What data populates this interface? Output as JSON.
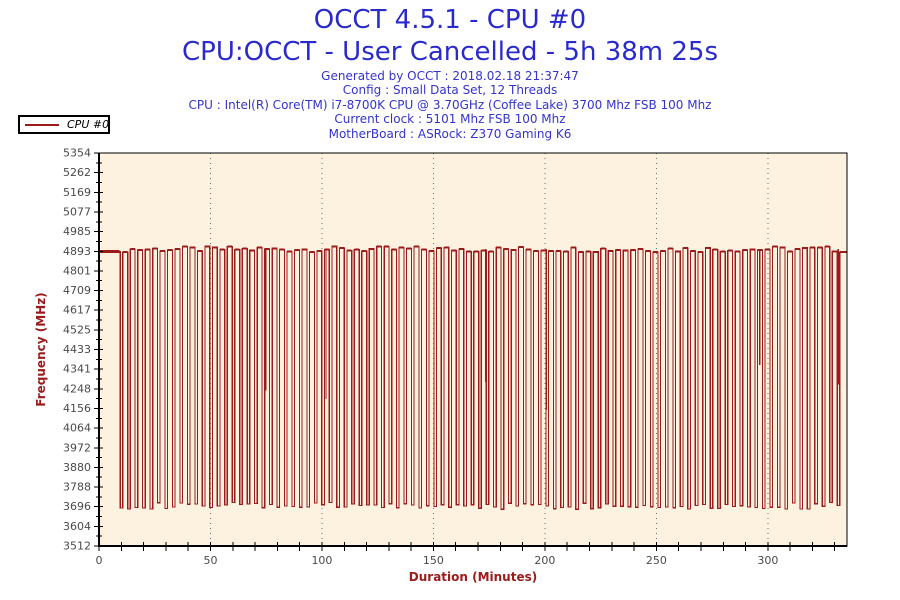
{
  "header": {
    "title": "OCCT 4.5.1 - CPU #0",
    "subtitle": "CPU:OCCT - User Cancelled - 5h 38m 25s"
  },
  "info_lines": [
    "Generated by OCCT : 2018.02.18 21:37:47",
    "Config : Small Data Set, 12 Threads",
    "CPU : Intel(R) Core(TM) i7-8700K CPU @ 3.70GHz (Coffee Lake) 3700 Mhz FSB 100 Mhz",
    "Current clock : 5101 Mhz FSB 100 Mhz",
    "MotherBoard : ASRock: Z370 Gaming K6"
  ],
  "legend": {
    "series_label": "CPU #0"
  },
  "colors": {
    "title_blue": "#2a2acc",
    "info_blue": "#3434cc",
    "series_red": "#9b1b1b",
    "axis_label_red": "#9b1b1b",
    "plot_bg": "#fcf2df",
    "axis_black": "#000000",
    "tick_label_gray": "#4a4a4a",
    "grid_gray": "#6e6e6e"
  },
  "chart_data": {
    "type": "line",
    "title": "OCCT 4.5.1 - CPU #0",
    "xlabel": "Duration (Minutes)",
    "ylabel": "Frequency (MHz)",
    "xlim": [
      0,
      335.5
    ],
    "ylim": [
      3512,
      5354
    ],
    "x_major_step": 50,
    "x_minor_step": 10,
    "x_max_tick": 330,
    "x_major_tick_labels": [
      "0",
      "50",
      "100",
      "150",
      "200",
      "250",
      "300"
    ],
    "y_tick_labels": [
      "3512",
      "3604",
      "3696",
      "3788",
      "3880",
      "3972",
      "4064",
      "4156",
      "4248",
      "4341",
      "4433",
      "4525",
      "4617",
      "4709",
      "4801",
      "4893",
      "4985",
      "5077",
      "5169",
      "5262",
      "5354"
    ],
    "grid": "vertical dotted lines at 50-minute majors",
    "legend_position": "outside top-left",
    "series": [
      {
        "name": "CPU #0",
        "pattern": "square-wave",
        "initial_flat": {
          "from_min": 0,
          "to_min": 9.2,
          "value_mhz": 4893
        },
        "oscillation": {
          "from_min": 9.5,
          "to_min": 335.3,
          "period_min": 3.35,
          "high_mhz": 4903,
          "low_mhz": 3700,
          "high_jitter_mhz": 14,
          "low_jitter_mhz": 16
        },
        "partial_dips": [
          {
            "min": 74.8,
            "to_mhz": 4240
          },
          {
            "min": 101.8,
            "to_mhz": 4200
          },
          {
            "min": 173.5,
            "to_mhz": 4280
          },
          {
            "min": 200.6,
            "to_mhz": 4150
          },
          {
            "min": 296.4,
            "to_mhz": 4360
          },
          {
            "min": 331.6,
            "to_mhz": 4270
          }
        ]
      }
    ]
  }
}
